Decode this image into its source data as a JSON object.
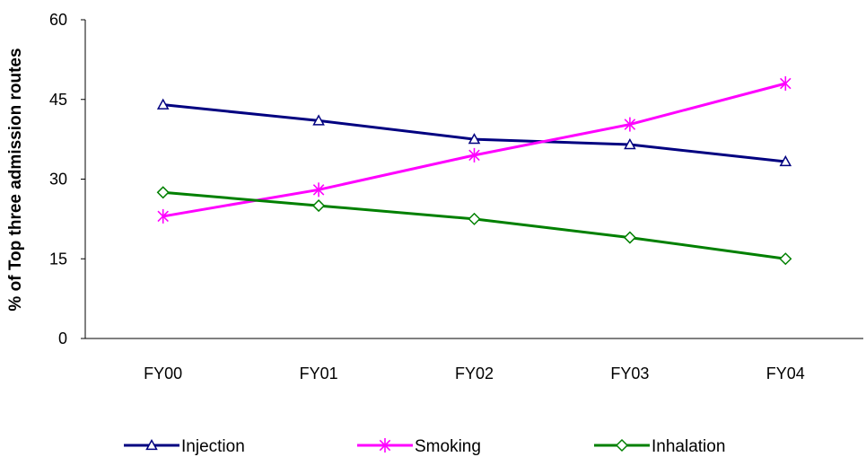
{
  "chart_data": {
    "type": "line",
    "title": "",
    "xlabel": "",
    "ylabel": "% of Top three admission routes",
    "categories": [
      "FY00",
      "FY01",
      "FY02",
      "FY03",
      "FY04"
    ],
    "ylim": [
      0,
      60
    ],
    "yticks": [
      0,
      15,
      30,
      45,
      60
    ],
    "grid": false,
    "legend_position": "bottom",
    "series": [
      {
        "name": "Injection",
        "color": "#000080",
        "marker": "triangle",
        "values": [
          44,
          41,
          37.5,
          36.5,
          33.3
        ]
      },
      {
        "name": "Smoking",
        "color": "#ff00ff",
        "marker": "asterisk",
        "values": [
          23,
          28,
          34.5,
          40.3,
          48
        ]
      },
      {
        "name": "Inhalation",
        "color": "#008000",
        "marker": "diamond",
        "values": [
          27.5,
          25,
          22.5,
          19,
          15
        ]
      }
    ]
  }
}
